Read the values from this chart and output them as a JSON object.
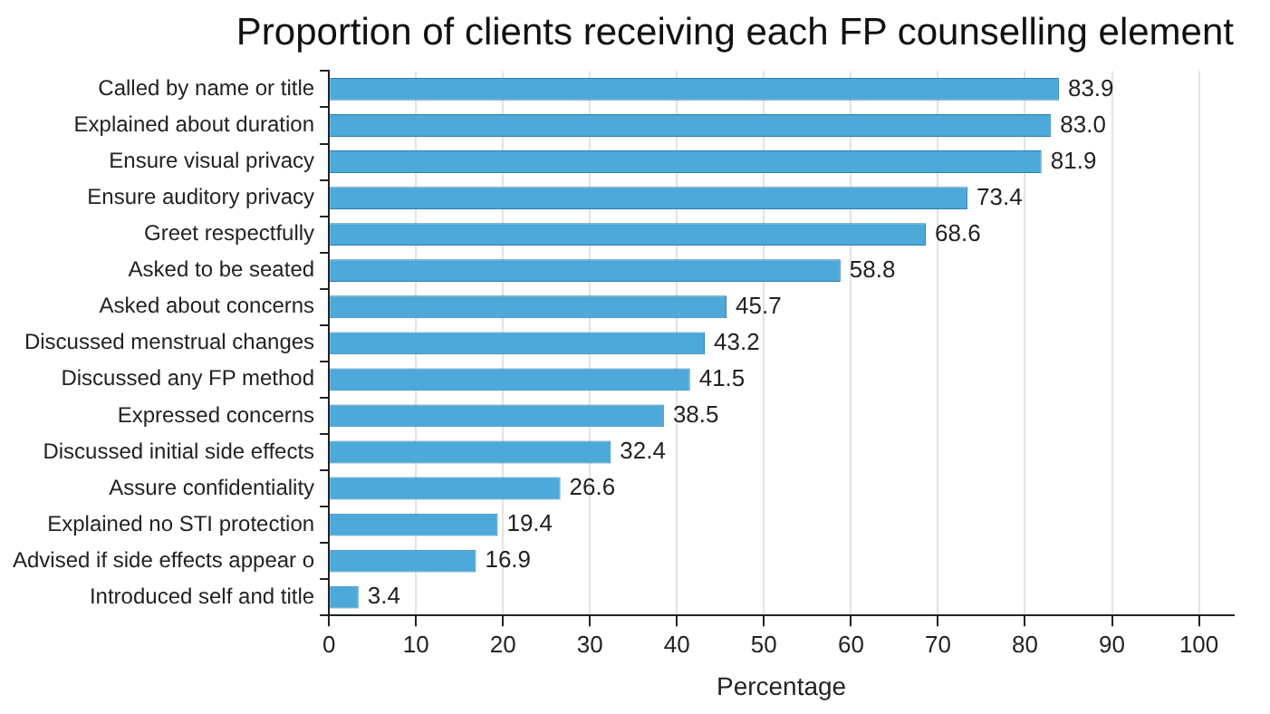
{
  "chart_data": {
    "type": "bar",
    "orientation": "horizontal",
    "title": "Proportion of clients receiving each FP counselling element",
    "xlabel": "Percentage",
    "categories": [
      "Called by name or title",
      "Explained about duration",
      "Ensure visual privacy",
      "Ensure auditory privacy",
      "Greet respectfully",
      "Asked to be seated",
      "Asked about concerns",
      "Discussed menstrual changes",
      "Discussed any FP method",
      "Expressed concerns",
      "Discussed initial side effects",
      "Assure confidentiality",
      "Explained no STI protection",
      "Advised if side effects appear o",
      "Introduced self and title"
    ],
    "values": [
      83.9,
      83.0,
      81.9,
      73.4,
      68.6,
      58.8,
      45.7,
      43.2,
      41.5,
      38.5,
      32.4,
      26.6,
      19.4,
      16.9,
      3.4
    ],
    "value_labels": [
      "83.9",
      "83.0",
      "81.9",
      "73.4",
      "68.6",
      "58.8",
      "45.7",
      "43.2",
      "41.5",
      "38.5",
      "32.4",
      "26.6",
      "19.4",
      "16.9",
      "3.4"
    ],
    "color": "#4ca9d9",
    "xlim": [
      0,
      104
    ],
    "xticks": [
      0,
      10,
      20,
      30,
      40,
      50,
      60,
      70,
      80,
      90,
      100
    ],
    "grid": "x",
    "legend": false
  }
}
